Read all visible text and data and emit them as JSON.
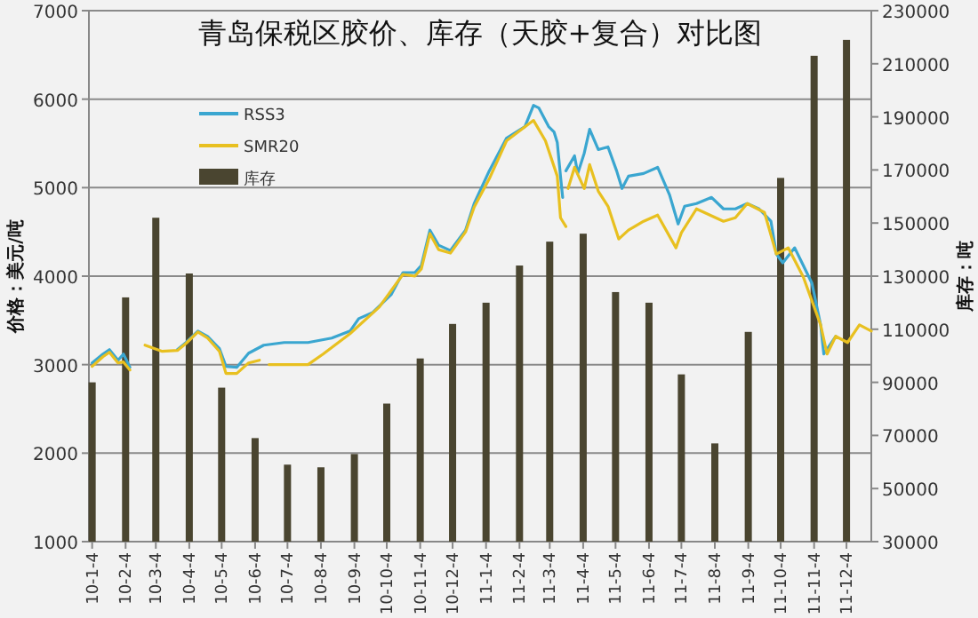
{
  "chart_data": {
    "type": "bar",
    "title": "青岛保税区胶价、库存（天胶+复合）对比图",
    "ylabel": "价格：美元/吨",
    "y2label": "库存：吨",
    "x": [
      "2010-01-04",
      "2010-02-04",
      "2010-03-04",
      "2010-04-04",
      "2010-05-04",
      "2010-06-04",
      "2010-07-04",
      "2010-08-04",
      "2010-09-04",
      "2010-10-04",
      "2010-11-04",
      "2010-12-04",
      "2011-01-04",
      "2011-02-04",
      "2011-03-04",
      "2011-04-04",
      "2011-05-04",
      "2011-06-04",
      "2011-07-04",
      "2011-08-04",
      "2011-09-04",
      "2011-10-04",
      "2011-11-04",
      "2011-12-04"
    ],
    "xlim": [
      "2010-01-01",
      "2011-12-27"
    ],
    "xticks": [
      {
        "value": "2010-01-04",
        "label": "10-1-4"
      },
      {
        "value": "2010-02-04",
        "label": "10-2-4"
      },
      {
        "value": "2010-03-04",
        "label": "10-3-4"
      },
      {
        "value": "2010-04-04",
        "label": "10-4-4"
      },
      {
        "value": "2010-05-04",
        "label": "10-5-4"
      },
      {
        "value": "2010-06-04",
        "label": "10-6-4"
      },
      {
        "value": "2010-07-04",
        "label": "10-7-4"
      },
      {
        "value": "2010-08-04",
        "label": "10-8-4"
      },
      {
        "value": "2010-09-04",
        "label": "10-9-4"
      },
      {
        "value": "2010-10-04",
        "label": "10-10-4"
      },
      {
        "value": "2010-11-04",
        "label": "10-11-4"
      },
      {
        "value": "2010-12-04",
        "label": "10-12-4"
      },
      {
        "value": "2011-01-04",
        "label": "11-1-4"
      },
      {
        "value": "2011-02-04",
        "label": "11-2-4"
      },
      {
        "value": "2011-03-04",
        "label": "11-3-4"
      },
      {
        "value": "2011-04-04",
        "label": "11-4-4"
      },
      {
        "value": "2011-05-04",
        "label": "11-5-4"
      },
      {
        "value": "2011-06-04",
        "label": "11-6-4"
      },
      {
        "value": "2011-07-04",
        "label": "11-7-4"
      },
      {
        "value": "2011-08-04",
        "label": "11-8-4"
      },
      {
        "value": "2011-09-04",
        "label": "11-9-4"
      },
      {
        "value": "2011-10-04",
        "label": "11-10-4"
      },
      {
        "value": "2011-11-04",
        "label": "11-11-4"
      },
      {
        "value": "2011-12-04",
        "label": "11-12-4"
      }
    ],
    "ylim": [
      1000,
      7000
    ],
    "yticks": [
      1000,
      2000,
      3000,
      4000,
      5000,
      6000,
      7000
    ],
    "y2lim": [
      30000,
      230000
    ],
    "y2ticks": [
      30000,
      50000,
      70000,
      90000,
      110000,
      130000,
      150000,
      170000,
      190000,
      210000,
      230000
    ],
    "grid": "y",
    "legend": "top left",
    "series": [
      {
        "name": "RSS3",
        "type": "line",
        "color": "#3aa6d0",
        "x": [
          "2010-01-04",
          "2010-01-14",
          "2010-01-20",
          "2010-01-28",
          "2010-02-02",
          "2010-02-08",
          "2010-02-15",
          "2010-02-22",
          "2010-03-10",
          "2010-03-24",
          "2010-04-01",
          "2010-04-12",
          "2010-04-21",
          "2010-05-02",
          "2010-05-08",
          "2010-05-18",
          "2010-05-29",
          "2010-06-12",
          "2010-07-01",
          "2010-07-23",
          "2010-08-14",
          "2010-08-31",
          "2010-09-08",
          "2010-09-21",
          "2010-10-08",
          "2010-10-19",
          "2010-10-30",
          "2010-11-05",
          "2010-11-13",
          "2010-11-21",
          "2010-12-02",
          "2010-12-16",
          "2010-12-24",
          "2011-01-07",
          "2011-01-23",
          "2011-02-09",
          "2011-02-17",
          "2011-02-22",
          "2011-03-03",
          "2011-03-08",
          "2011-03-11",
          "2011-03-14",
          "2011-03-16",
          "2011-03-18",
          "2011-03-19",
          "2011-03-27",
          "2011-03-30",
          "2011-04-05",
          "2011-04-10",
          "2011-04-18",
          "2011-04-27",
          "2011-05-05",
          "2011-05-10",
          "2011-05-16",
          "2011-05-30",
          "2011-06-12",
          "2011-06-23",
          "2011-07-01",
          "2011-07-07",
          "2011-07-18",
          "2011-08-01",
          "2011-08-12",
          "2011-08-23",
          "2011-09-03",
          "2011-09-14",
          "2011-09-25",
          "2011-09-30",
          "2011-10-06",
          "2011-10-17",
          "2011-10-25",
          "2011-11-02",
          "2011-11-10",
          "2011-11-13",
          "2011-11-24"
        ],
        "values": [
          3020,
          3120,
          3170,
          3050,
          3120,
          2970,
          null,
          null,
          null,
          3170,
          3250,
          3380,
          3320,
          3180,
          2980,
          2970,
          3130,
          3220,
          3250,
          3250,
          3300,
          3380,
          3520,
          3590,
          3790,
          4040,
          4040,
          4120,
          4520,
          4350,
          4290,
          4520,
          4820,
          5190,
          5560,
          5690,
          5930,
          5900,
          5690,
          5630,
          5510,
          5130,
          4890,
          null,
          5190,
          5360,
          5160,
          5390,
          5660,
          5430,
          5460,
          5190,
          4990,
          5130,
          5160,
          5230,
          4920,
          4590,
          4790,
          4820,
          4890,
          4760,
          4760,
          4820,
          4760,
          4620,
          4250,
          4150,
          4320,
          4120,
          3920,
          3450,
          3120,
          3320
        ]
      },
      {
        "name": "SMR20",
        "type": "line",
        "color": "#e8c020",
        "x": [
          "2010-01-04",
          "2010-01-14",
          "2010-01-20",
          "2010-01-28",
          "2010-02-02",
          "2010-02-08",
          "2010-02-15",
          "2010-02-22",
          "2010-03-10",
          "2010-03-24",
          "2010-04-01",
          "2010-04-12",
          "2010-04-21",
          "2010-05-02",
          "2010-05-08",
          "2010-05-18",
          "2010-05-29",
          "2010-06-08",
          "2010-06-10",
          "2010-06-17",
          "2010-07-23",
          "2010-08-06",
          "2010-08-31",
          "2010-09-27",
          "2010-10-19",
          "2010-10-30",
          "2010-11-05",
          "2010-11-13",
          "2010-11-21",
          "2010-12-02",
          "2010-12-16",
          "2010-12-24",
          "2011-01-07",
          "2011-01-23",
          "2011-02-17",
          "2011-02-28",
          "2011-03-11",
          "2011-03-14",
          "2011-03-19",
          "2011-03-20",
          "2011-03-21",
          "2011-03-27",
          "2011-04-05",
          "2011-04-10",
          "2011-04-18",
          "2011-04-27",
          "2011-05-07",
          "2011-05-16",
          "2011-05-30",
          "2011-06-12",
          "2011-06-29",
          "2011-07-04",
          "2011-07-18",
          "2011-08-12",
          "2011-08-23",
          "2011-09-03",
          "2011-09-19",
          "2011-09-30",
          "2011-10-11",
          "2011-10-25",
          "2011-11-02",
          "2011-11-10",
          "2011-11-16",
          "2011-11-24",
          "2011-12-05",
          "2011-12-16",
          "2011-12-27"
        ],
        "values": [
          2980,
          3090,
          3140,
          3020,
          3030,
          2940,
          null,
          3220,
          3150,
          3160,
          3240,
          3370,
          3300,
          3150,
          2900,
          2900,
          3020,
          3050,
          null,
          3000,
          3000,
          3120,
          3350,
          3650,
          4020,
          4000,
          4080,
          4480,
          4300,
          4260,
          4500,
          4780,
          5100,
          5530,
          5760,
          5530,
          5130,
          4660,
          4560,
          null,
          4990,
          5230,
          4990,
          5260,
          4960,
          4790,
          4420,
          4520,
          4620,
          4690,
          4320,
          4490,
          4760,
          4620,
          4660,
          4820,
          4720,
          4250,
          4320,
          3990,
          3720,
          3450,
          3120,
          3320,
          3250,
          3450,
          3380
        ]
      },
      {
        "name": "库存",
        "axis": "y2",
        "color": "#4a4530",
        "values": [
          90000,
          122000,
          152000,
          131000,
          88000,
          69000,
          59000,
          58000,
          63000,
          82000,
          99000,
          112000,
          120000,
          134000,
          143000,
          146000,
          124000,
          120000,
          93000,
          67000,
          109000,
          167000,
          213000,
          219000
        ]
      }
    ]
  }
}
